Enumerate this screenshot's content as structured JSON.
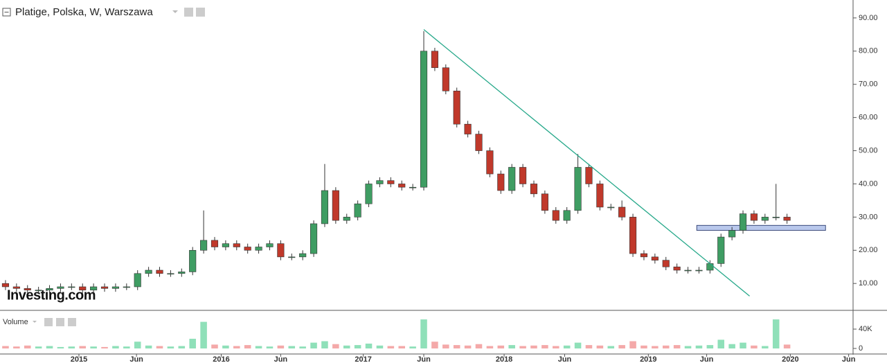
{
  "chart_data": {
    "type": "candlestick",
    "title": "Platige, Polska, W, Warszawa",
    "watermark": "Investing.com",
    "volume_label": "Volume",
    "xlim": [
      -0.5,
      77
    ],
    "xticks": [
      {
        "value": 6.67,
        "label": "2015"
      },
      {
        "value": 11.9,
        "label": "Jun"
      },
      {
        "value": 19.6,
        "label": "2016"
      },
      {
        "value": 25.0,
        "label": "Jun"
      },
      {
        "value": 32.5,
        "label": "2017"
      },
      {
        "value": 38.0,
        "label": "Jun"
      },
      {
        "value": 45.3,
        "label": "2018"
      },
      {
        "value": 50.8,
        "label": "Jun"
      },
      {
        "value": 58.4,
        "label": "2019"
      },
      {
        "value": 63.7,
        "label": "Jun"
      },
      {
        "value": 71.3,
        "label": "2020"
      },
      {
        "value": 76.6,
        "label": "Jun"
      }
    ],
    "ylim": [
      1.9,
      95.4
    ],
    "yticks": [
      {
        "value": 10,
        "label": "10.00"
      },
      {
        "value": 20,
        "label": "20.00"
      },
      {
        "value": 30,
        "label": "30.00"
      },
      {
        "value": 40,
        "label": "40.00"
      },
      {
        "value": 50,
        "label": "50.00"
      },
      {
        "value": 60,
        "label": "60.00"
      },
      {
        "value": 70,
        "label": "70.00"
      },
      {
        "value": 80,
        "label": "80.00"
      },
      {
        "value": 90,
        "label": "90.00"
      }
    ],
    "up_color": "#3f9d63",
    "down_color": "#c0392b",
    "open": [
      10,
      9,
      8.5,
      8,
      8,
      8.5,
      9,
      9,
      8,
      9,
      8.5,
      9,
      9,
      13,
      14,
      13,
      13,
      13.5,
      20,
      23,
      21,
      22,
      21,
      20,
      21,
      22,
      18,
      18,
      19,
      28,
      38,
      29,
      30,
      34,
      40,
      41,
      40,
      39,
      39,
      80,
      75,
      68,
      58,
      55,
      50,
      43,
      38,
      45,
      40,
      37,
      32,
      29,
      32,
      45,
      40,
      33,
      33,
      30,
      19,
      18,
      17,
      15,
      14,
      14,
      14,
      16,
      24,
      26,
      31,
      29,
      30,
      30
    ],
    "high": [
      11,
      10,
      9.5,
      9,
      9.5,
      10,
      10,
      10,
      10,
      10,
      10,
      10,
      14,
      15,
      15,
      14,
      14.5,
      21,
      32,
      24,
      23,
      23,
      22,
      22,
      23,
      23,
      19,
      20,
      29,
      46,
      39,
      31,
      35,
      41,
      42,
      42,
      41,
      40,
      86,
      81,
      76,
      69,
      59,
      56,
      51,
      44,
      46,
      46,
      41,
      38,
      33,
      33,
      49,
      46,
      41,
      34,
      35,
      31,
      20,
      19,
      18,
      16,
      15,
      15,
      17,
      25,
      27,
      32,
      32,
      31,
      40,
      31
    ],
    "low": [
      8,
      7.5,
      7,
      7,
      7,
      7.5,
      8,
      7,
      7,
      7.5,
      7.5,
      8,
      8,
      12,
      12,
      12,
      12,
      12.5,
      19,
      20,
      20,
      20,
      19,
      19,
      20,
      17,
      17,
      17,
      18,
      27,
      28,
      28,
      29,
      33,
      39,
      39,
      38,
      38,
      38,
      74,
      67,
      57,
      54,
      49,
      42,
      37,
      37,
      39,
      36,
      31,
      28,
      28,
      31,
      39,
      32,
      32,
      29,
      18,
      17,
      16,
      14,
      13,
      13,
      13,
      13,
      15,
      23,
      25,
      28,
      28,
      29,
      28
    ],
    "close": [
      9,
      8.5,
      8,
      8,
      8.5,
      9,
      9,
      8,
      9,
      8.5,
      9,
      9,
      13,
      14,
      13,
      13,
      13.5,
      20,
      23,
      21,
      22,
      21,
      20,
      21,
      22,
      18,
      18,
      19,
      28,
      38,
      29,
      30,
      34,
      40,
      41,
      40,
      39,
      39,
      80,
      75,
      68,
      58,
      55,
      50,
      43,
      38,
      45,
      40,
      37,
      32,
      29,
      32,
      45,
      40,
      33,
      33,
      30,
      19,
      18,
      17,
      15,
      14,
      14,
      14,
      16,
      24,
      26,
      31,
      29,
      30,
      30,
      29
    ],
    "trendline": {
      "color": "#26a88a",
      "x": [
        38.0,
        67.6
      ],
      "y": [
        86.5,
        6.2
      ]
    },
    "zone": {
      "color": "#b9c8ec",
      "x": [
        62.8,
        74.5
      ],
      "y": [
        26,
        27.5
      ]
    },
    "volume": {
      "up_color": "#8fe0b9",
      "down_color": "#f4a9a9",
      "ylim": [
        0,
        73000
      ],
      "yticks": [
        0,
        {
          "value": 40000,
          "label": "40K"
        }
      ],
      "values": [
        5000,
        4000,
        6000,
        4000,
        5000,
        3000,
        4000,
        5000,
        4000,
        3000,
        5000,
        4000,
        14000,
        6000,
        5000,
        4000,
        5000,
        20000,
        55000,
        8000,
        6000,
        5000,
        7000,
        5000,
        4000,
        6000,
        5000,
        4000,
        12000,
        15000,
        9000,
        6000,
        7000,
        10000,
        6000,
        5000,
        5000,
        4000,
        60000,
        14000,
        8000,
        7000,
        6000,
        9000,
        5000,
        6000,
        7000,
        5000,
        6000,
        7000,
        5000,
        6000,
        12000,
        7000,
        6000,
        5000,
        7000,
        15000,
        6000,
        5000,
        6000,
        7000,
        5000,
        6000,
        7000,
        18000,
        9000,
        12000,
        6000,
        5000,
        60000,
        8000
      ]
    }
  }
}
